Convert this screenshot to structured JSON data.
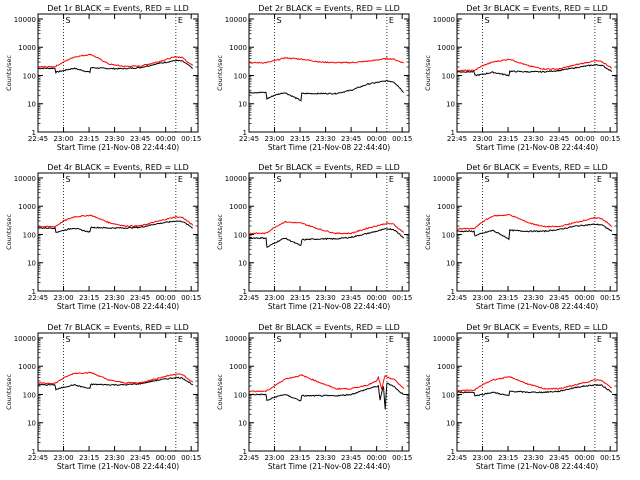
{
  "figure": {
    "panels": [
      {
        "title": "Det 1r BLACK = Events, RED = LLD"
      },
      {
        "title": "Det 2r BLACK = Events, RED = LLD"
      },
      {
        "title": "Det 3r BLACK = Events, RED = LLD"
      },
      {
        "title": "Det 4r BLACK = Events, RED = LLD"
      },
      {
        "title": "Det 5r BLACK = Events, RED = LLD"
      },
      {
        "title": "Det 6r BLACK = Events, RED = LLD"
      },
      {
        "title": "Det 7r BLACK = Events, RED = LLD"
      },
      {
        "title": "Det 8r BLACK = Events, RED = LLD"
      },
      {
        "title": "Det 9r BLACK = Events, RED = LLD"
      }
    ]
  },
  "chart_data": [
    {
      "type": "line",
      "title": "Det 1r BLACK = Events, RED = LLD",
      "xlabel": "Start Time (21-Nov-08 22:44:40)",
      "ylabel": "Counts/sec",
      "ylog": true,
      "ylim": [
        1,
        15000
      ],
      "xticks": [
        "22:45",
        "23:00",
        "23:15",
        "23:30",
        "23:45",
        "00:00",
        "00:15"
      ],
      "yticks": [
        "1",
        "10",
        "100",
        "1000",
        "10000"
      ],
      "series": [
        {
          "name": "LLD",
          "color": "#ff0000",
          "x": [
            0,
            10,
            15,
            21,
            31,
            42,
            51,
            60,
            70,
            81,
            85,
            88,
            91
          ],
          "y": [
            200,
            205,
            300,
            450,
            560,
            250,
            210,
            215,
            300,
            460,
            430,
            300,
            230
          ]
        },
        {
          "name": "Events",
          "color": "#000000",
          "x": [
            0,
            10,
            10.5,
            15,
            21,
            30.5,
            31,
            42,
            51,
            60,
            70,
            81,
            85,
            88,
            91
          ],
          "y": [
            180,
            180,
            130,
            150,
            180,
            130,
            190,
            175,
            175,
            190,
            260,
            340,
            320,
            240,
            180
          ]
        }
      ],
      "vlines": [
        15,
        81
      ],
      "marks": [
        "S",
        "E"
      ]
    },
    {
      "type": "line",
      "title": "Det 2r BLACK = Events, RED = LLD",
      "xlabel": "Start Time (21-Nov-08 22:44:40)",
      "ylabel": "Counts/sec",
      "ylog": true,
      "ylim": [
        1,
        15000
      ],
      "xticks": [
        "22:45",
        "23:00",
        "23:15",
        "23:30",
        "23:45",
        "00:00",
        "00:15"
      ],
      "yticks": [
        "1",
        "10",
        "100",
        "1000",
        "10000"
      ],
      "series": [
        {
          "name": "LLD",
          "color": "#ff0000",
          "x": [
            0,
            10,
            15,
            21,
            31,
            42,
            51,
            60,
            70,
            81,
            85,
            88,
            91
          ],
          "y": [
            280,
            285,
            330,
            420,
            380,
            300,
            285,
            285,
            320,
            400,
            380,
            320,
            280
          ]
        },
        {
          "name": "Events",
          "color": "#000000",
          "x": [
            0,
            10,
            10.5,
            15,
            21,
            30.5,
            31,
            42,
            51,
            60,
            70,
            81,
            85,
            88,
            91
          ],
          "y": [
            25,
            25,
            15,
            20,
            25,
            13,
            23,
            23,
            23,
            30,
            50,
            65,
            60,
            40,
            25
          ]
        }
      ],
      "vlines": [
        15,
        81
      ],
      "marks": [
        "S",
        "E"
      ]
    },
    {
      "type": "line",
      "title": "Det 3r BLACK = Events, RED = LLD",
      "xlabel": "Start Time (21-Nov-08 22:44:40)",
      "ylabel": "Counts/sec",
      "ylog": true,
      "ylim": [
        1,
        15000
      ],
      "xticks": [
        "22:45",
        "23:00",
        "23:15",
        "23:30",
        "23:45",
        "00:00",
        "00:15"
      ],
      "yticks": [
        "1",
        "10",
        "100",
        "1000",
        "10000"
      ],
      "series": [
        {
          "name": "LLD",
          "color": "#ff0000",
          "x": [
            0,
            10,
            15,
            21,
            31,
            42,
            51,
            60,
            70,
            81,
            85,
            88,
            91
          ],
          "y": [
            150,
            150,
            220,
            300,
            380,
            220,
            170,
            170,
            240,
            330,
            310,
            240,
            180
          ]
        },
        {
          "name": "Events",
          "color": "#000000",
          "x": [
            0,
            10,
            10.5,
            15,
            21,
            30.5,
            31,
            42,
            51,
            60,
            70,
            81,
            85,
            88,
            91
          ],
          "y": [
            135,
            135,
            100,
            110,
            130,
            100,
            140,
            135,
            135,
            150,
            190,
            240,
            230,
            180,
            140
          ]
        }
      ],
      "vlines": [
        15,
        81
      ],
      "marks": [
        "S",
        "E"
      ]
    },
    {
      "type": "line",
      "title": "Det 4r BLACK = Events, RED = LLD",
      "xlabel": "Start Time (21-Nov-08 22:44:40)",
      "ylabel": "Counts/sec",
      "ylog": true,
      "ylim": [
        1,
        15000
      ],
      "xticks": [
        "22:45",
        "23:00",
        "23:15",
        "23:30",
        "23:45",
        "00:00",
        "00:15"
      ],
      "yticks": [
        "1",
        "10",
        "100",
        "1000",
        "10000"
      ],
      "series": [
        {
          "name": "LLD",
          "color": "#ff0000",
          "x": [
            0,
            10,
            15,
            21,
            31,
            42,
            51,
            60,
            70,
            81,
            85,
            88,
            91
          ],
          "y": [
            190,
            190,
            300,
            420,
            480,
            260,
            200,
            200,
            290,
            420,
            400,
            290,
            210
          ]
        },
        {
          "name": "Events",
          "color": "#000000",
          "x": [
            0,
            10,
            10.5,
            15,
            21,
            30.5,
            31,
            42,
            51,
            60,
            70,
            81,
            85,
            88,
            91
          ],
          "y": [
            170,
            170,
            120,
            140,
            170,
            120,
            180,
            170,
            170,
            180,
            240,
            300,
            290,
            220,
            170
          ]
        }
      ],
      "vlines": [
        15,
        81
      ],
      "marks": [
        "S",
        "E"
      ]
    },
    {
      "type": "line",
      "title": "Det 5r BLACK = Events, RED = LLD",
      "xlabel": "Start Time (21-Nov-08 22:44:40)",
      "ylabel": "Counts/sec",
      "ylog": true,
      "ylim": [
        1,
        15000
      ],
      "xticks": [
        "22:45",
        "23:00",
        "23:15",
        "23:30",
        "23:45",
        "00:00",
        "00:15"
      ],
      "yticks": [
        "1",
        "10",
        "100",
        "1000",
        "10000"
      ],
      "series": [
        {
          "name": "LLD",
          "color": "#ff0000",
          "x": [
            0,
            10,
            15,
            21,
            31,
            42,
            51,
            60,
            70,
            81,
            85,
            88,
            91
          ],
          "y": [
            110,
            110,
            180,
            280,
            250,
            150,
            110,
            110,
            170,
            250,
            230,
            160,
            120
          ]
        },
        {
          "name": "Events",
          "color": "#000000",
          "x": [
            0,
            10,
            10.5,
            15,
            21,
            30.5,
            31,
            42,
            51,
            60,
            70,
            81,
            85,
            88,
            91
          ],
          "y": [
            75,
            75,
            35,
            50,
            75,
            40,
            65,
            70,
            70,
            80,
            110,
            160,
            150,
            110,
            75
          ]
        }
      ],
      "vlines": [
        15,
        81
      ],
      "marks": [
        "S",
        "E"
      ]
    },
    {
      "type": "line",
      "title": "Det 6r BLACK = Events, RED = LLD",
      "xlabel": "Start Time (21-Nov-08 22:44:40)",
      "ylabel": "Counts/sec",
      "ylog": true,
      "ylim": [
        1,
        15000
      ],
      "xticks": [
        "22:45",
        "23:00",
        "23:15",
        "23:30",
        "23:45",
        "00:00",
        "00:15"
      ],
      "yticks": [
        "1",
        "10",
        "100",
        "1000",
        "10000"
      ],
      "series": [
        {
          "name": "LLD",
          "color": "#ff0000",
          "x": [
            0,
            10,
            15,
            21,
            31,
            42,
            51,
            60,
            70,
            81,
            85,
            88,
            91
          ],
          "y": [
            160,
            160,
            280,
            450,
            500,
            260,
            190,
            190,
            270,
            390,
            370,
            270,
            190
          ]
        },
        {
          "name": "Events",
          "color": "#000000",
          "x": [
            0,
            10,
            10.5,
            15,
            21,
            30.5,
            31,
            42,
            51,
            60,
            70,
            81,
            85,
            88,
            91
          ],
          "y": [
            130,
            130,
            90,
            110,
            140,
            70,
            140,
            130,
            130,
            150,
            200,
            230,
            220,
            170,
            130
          ]
        }
      ],
      "vlines": [
        15,
        81
      ],
      "marks": [
        "S",
        "E"
      ]
    },
    {
      "type": "line",
      "title": "Det 7r BLACK = Events, RED = LLD",
      "xlabel": "Start Time (21-Nov-08 22:44:40)",
      "ylabel": "Counts/sec",
      "ylog": true,
      "ylim": [
        1,
        15000
      ],
      "xticks": [
        "22:45",
        "23:00",
        "23:15",
        "23:30",
        "23:45",
        "00:00",
        "00:15"
      ],
      "yticks": [
        "1",
        "10",
        "100",
        "1000",
        "10000"
      ],
      "series": [
        {
          "name": "LLD",
          "color": "#ff0000",
          "x": [
            0,
            10,
            15,
            21,
            31,
            42,
            51,
            60,
            70,
            81,
            85,
            88,
            91
          ],
          "y": [
            250,
            250,
            380,
            560,
            600,
            320,
            260,
            260,
            370,
            540,
            500,
            360,
            270
          ]
        },
        {
          "name": "Events",
          "color": "#000000",
          "x": [
            0,
            10,
            10.5,
            15,
            21,
            30.5,
            31,
            42,
            51,
            60,
            70,
            81,
            85,
            88,
            91
          ],
          "y": [
            220,
            220,
            150,
            180,
            220,
            160,
            230,
            220,
            220,
            240,
            320,
            400,
            380,
            290,
            220
          ]
        }
      ],
      "vlines": [
        15,
        81
      ],
      "marks": [
        "S",
        "E"
      ]
    },
    {
      "type": "line",
      "title": "Det 8r BLACK = Events, RED = LLD",
      "xlabel": "Start Time (21-Nov-08 22:44:40)",
      "ylabel": "Counts/sec",
      "ylog": true,
      "ylim": [
        1,
        15000
      ],
      "xticks": [
        "22:45",
        "23:00",
        "23:15",
        "23:30",
        "23:45",
        "00:00",
        "00:15"
      ],
      "yticks": [
        "1",
        "10",
        "100",
        "1000",
        "10000"
      ],
      "series": [
        {
          "name": "LLD",
          "color": "#ff0000",
          "x": [
            0,
            10,
            15,
            21,
            31,
            42,
            51,
            60,
            70,
            75,
            76,
            77,
            78,
            79,
            80,
            81,
            85,
            88,
            91
          ],
          "y": [
            130,
            130,
            200,
            350,
            480,
            260,
            160,
            160,
            220,
            300,
            400,
            250,
            150,
            300,
            450,
            400,
            350,
            240,
            160
          ]
        },
        {
          "name": "Events",
          "color": "#000000",
          "x": [
            0,
            10,
            10.5,
            15,
            21,
            30.5,
            31,
            42,
            51,
            60,
            70,
            76,
            77,
            78,
            79,
            80,
            81,
            85,
            88,
            91
          ],
          "y": [
            100,
            100,
            60,
            80,
            100,
            60,
            90,
            90,
            90,
            100,
            160,
            200,
            60,
            120,
            200,
            30,
            250,
            200,
            130,
            100
          ]
        }
      ],
      "vlines": [
        15,
        81
      ],
      "marks": [
        "S",
        "E"
      ]
    },
    {
      "type": "line",
      "title": "Det 9r BLACK = Events, RED = LLD",
      "xlabel": "Start Time (21-Nov-08 22:44:40)",
      "ylabel": "Counts/sec",
      "ylog": true,
      "ylim": [
        1,
        15000
      ],
      "xticks": [
        "22:45",
        "23:00",
        "23:15",
        "23:30",
        "23:45",
        "00:00",
        "00:15"
      ],
      "yticks": [
        "1",
        "10",
        "100",
        "1000",
        "10000"
      ],
      "series": [
        {
          "name": "LLD",
          "color": "#ff0000",
          "x": [
            0,
            10,
            15,
            21,
            31,
            42,
            51,
            60,
            70,
            81,
            85,
            88,
            91
          ],
          "y": [
            140,
            140,
            220,
            330,
            420,
            230,
            160,
            160,
            220,
            330,
            310,
            230,
            170
          ]
        },
        {
          "name": "Events",
          "color": "#000000",
          "x": [
            0,
            10,
            10.5,
            15,
            21,
            30.5,
            31,
            42,
            51,
            60,
            70,
            81,
            85,
            88,
            91
          ],
          "y": [
            120,
            120,
            90,
            100,
            120,
            90,
            130,
            120,
            120,
            130,
            180,
            220,
            210,
            160,
            120
          ]
        }
      ],
      "vlines": [
        15,
        81
      ],
      "marks": [
        "S",
        "E"
      ]
    }
  ]
}
